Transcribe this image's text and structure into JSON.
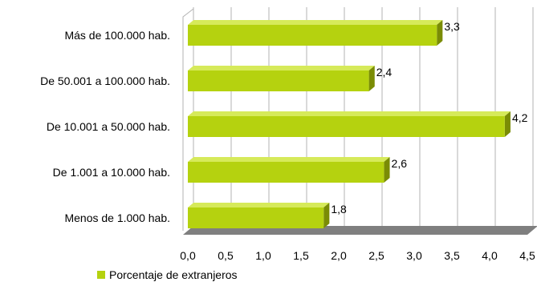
{
  "chart_data": {
    "type": "bar",
    "orientation": "horizontal",
    "categories": [
      "Más de 100.000 hab.",
      "De 50.001 a 100.000 hab.",
      "De 10.001 a 50.000 hab.",
      "De 1.001 a 10.000 hab.",
      "Menos de 1.000 hab."
    ],
    "series": [
      {
        "name": "Porcentaje de extranjeros",
        "values": [
          3.3,
          2.4,
          4.2,
          2.6,
          1.8
        ],
        "value_labels": [
          "3,3",
          "2,4",
          "4,2",
          "2,6",
          "1,8"
        ],
        "color": "#b5d20f"
      }
    ],
    "xlim": [
      0,
      4.5
    ],
    "x_ticks": [
      0,
      0.5,
      1,
      1.5,
      2,
      2.5,
      3,
      3.5,
      4,
      4.5
    ],
    "x_tick_labels": [
      "0,0",
      "0,5",
      "1,0",
      "1,5",
      "2,0",
      "2,5",
      "3,0",
      "3,5",
      "4,0",
      "4,5"
    ],
    "grid": true,
    "legend_position": "bottom-left",
    "three_d": true
  }
}
